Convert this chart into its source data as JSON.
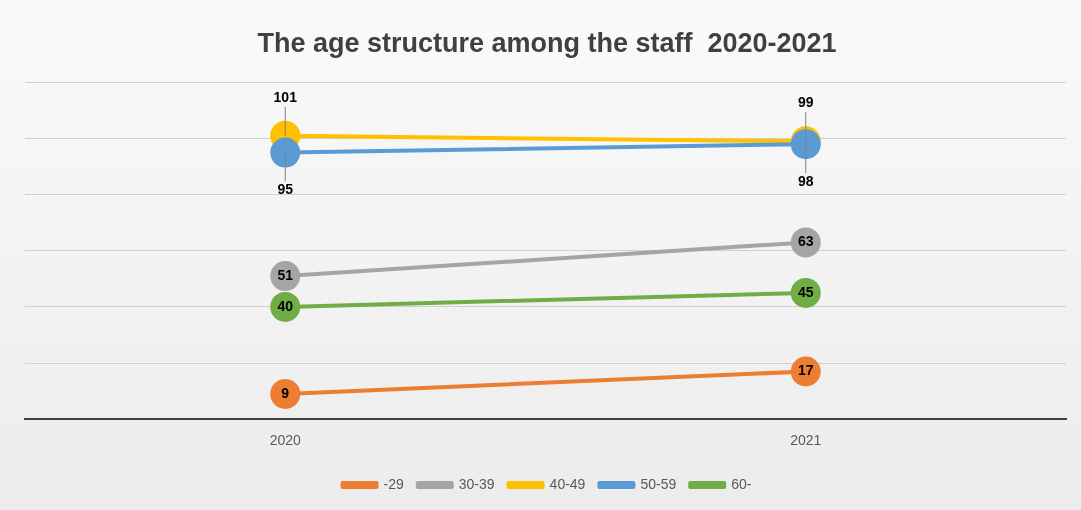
{
  "chart_data": {
    "type": "line",
    "title": "The age structure among the staff  2020-2021",
    "categories": [
      "2020",
      "2021"
    ],
    "series": [
      {
        "name": "-29",
        "color": "#ed7d31",
        "values": [
          9,
          17
        ]
      },
      {
        "name": "30-39",
        "color": "#a5a5a5",
        "values": [
          51,
          63
        ]
      },
      {
        "name": "40-49",
        "color": "#ffc000",
        "values": [
          101,
          99
        ]
      },
      {
        "name": "50-59",
        "color": "#5b9bd5",
        "values": [
          95,
          98
        ]
      },
      {
        "name": "60-",
        "color": "#70ad47",
        "values": [
          40,
          45
        ]
      }
    ],
    "ylim": [
      0,
      120
    ],
    "yticks": [
      {
        "value": 0,
        "label": null
      },
      {
        "value": 20,
        "label": null
      },
      {
        "value": 40,
        "label": null
      },
      {
        "value": 60,
        "label": null
      },
      {
        "value": 80,
        "label": null
      },
      {
        "value": 100,
        "label": null
      },
      {
        "value": 120,
        "label": null
      }
    ],
    "tick_labels": "x",
    "grid": "y",
    "legend": "bottom",
    "marker": "circle",
    "line_style": "solid",
    "data_labels": true
  }
}
